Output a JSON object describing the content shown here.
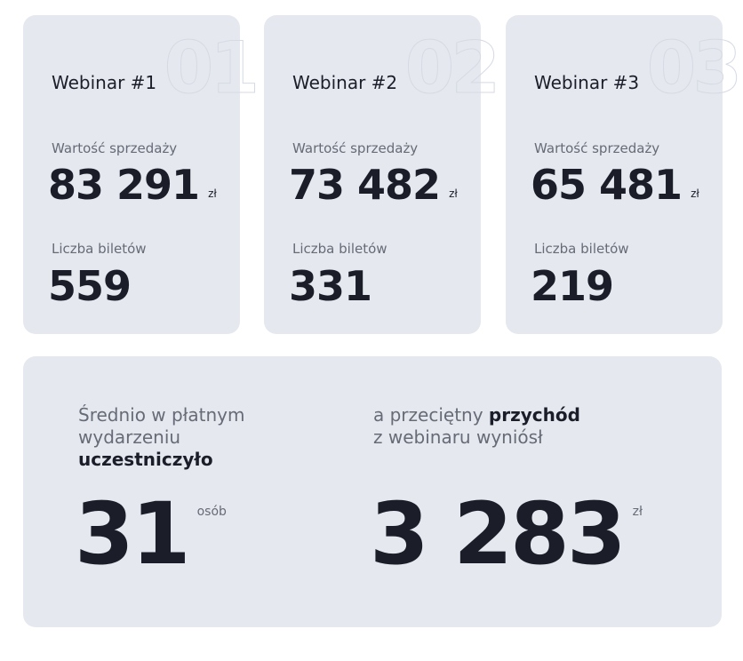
{
  "webinars": [
    {
      "index": "01",
      "title": "Webinar #1",
      "sales_label": "Wartość sprzedaży",
      "sales_value": "83 291",
      "currency": "zł",
      "tickets_label": "Liczba biletów",
      "tickets_value": "559"
    },
    {
      "index": "02",
      "title": "Webinar #2",
      "sales_label": "Wartość sprzedaży",
      "sales_value": "73 482",
      "currency": "zł",
      "tickets_label": "Liczba biletów",
      "tickets_value": "331"
    },
    {
      "index": "03",
      "title": "Webinar #3",
      "sales_label": "Wartość sprzedaży",
      "sales_value": "65 481",
      "currency": "zł",
      "tickets_label": "Liczba biletów",
      "tickets_value": "219"
    }
  ],
  "summary": {
    "attendance": {
      "line1": "Średnio w płatnym",
      "line2": "wydarzeniu",
      "line3_bold": "uczestniczyło",
      "value": "31",
      "unit": "osób"
    },
    "revenue": {
      "line1": "a przeciętny ",
      "line1_bold": "przychód",
      "line2": "z webinaru wyniósł",
      "value": "3 283",
      "unit": "zł"
    }
  }
}
